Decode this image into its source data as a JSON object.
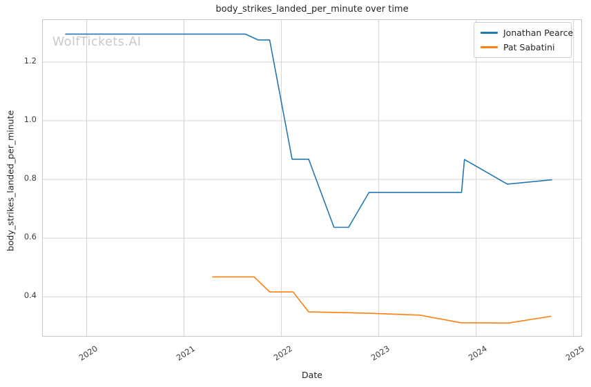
{
  "watermark": "WolfTickets.AI",
  "chart_data": {
    "type": "line",
    "title": "body_strikes_landed_per_minute over time",
    "xlabel": "Date",
    "ylabel": "body_strikes_landed_per_minute",
    "grid": true,
    "legend_position": "upper right",
    "xlim": [
      2019.55,
      2025.08
    ],
    "ylim": [
      0.267,
      1.343
    ],
    "xticks": [
      {
        "value": 2020,
        "label": "2020"
      },
      {
        "value": 2021,
        "label": "2021"
      },
      {
        "value": 2022,
        "label": "2022"
      },
      {
        "value": 2023,
        "label": "2023"
      },
      {
        "value": 2024,
        "label": "2024"
      },
      {
        "value": 2025,
        "label": "2025"
      }
    ],
    "yticks": [
      {
        "value": 0.4,
        "label": "0.4"
      },
      {
        "value": 0.6,
        "label": "0.6"
      },
      {
        "value": 0.8,
        "label": "0.8"
      },
      {
        "value": 1.0,
        "label": "1.0"
      },
      {
        "value": 1.2,
        "label": "1.2"
      }
    ],
    "series": [
      {
        "name": "Jonathan Pearce",
        "color": "#1f77b4",
        "points": [
          [
            2019.78,
            1.295
          ],
          [
            2021.63,
            1.295
          ],
          [
            2021.76,
            1.275
          ],
          [
            2021.88,
            1.275
          ],
          [
            2022.11,
            0.869
          ],
          [
            2022.28,
            0.869
          ],
          [
            2022.54,
            0.637
          ],
          [
            2022.69,
            0.637
          ],
          [
            2022.9,
            0.756
          ],
          [
            2023.85,
            0.756
          ],
          [
            2023.88,
            0.868
          ],
          [
            2024.32,
            0.784
          ],
          [
            2024.78,
            0.799
          ]
        ]
      },
      {
        "name": "Pat Sabatini",
        "color": "#ff7f0e",
        "points": [
          [
            2021.29,
            0.468
          ],
          [
            2021.72,
            0.468
          ],
          [
            2021.88,
            0.417
          ],
          [
            2022.12,
            0.417
          ],
          [
            2022.28,
            0.349
          ],
          [
            2022.56,
            0.347
          ],
          [
            2022.92,
            0.344
          ],
          [
            2023.42,
            0.338
          ],
          [
            2023.84,
            0.312
          ],
          [
            2024.33,
            0.311
          ],
          [
            2024.77,
            0.334
          ]
        ]
      }
    ]
  }
}
